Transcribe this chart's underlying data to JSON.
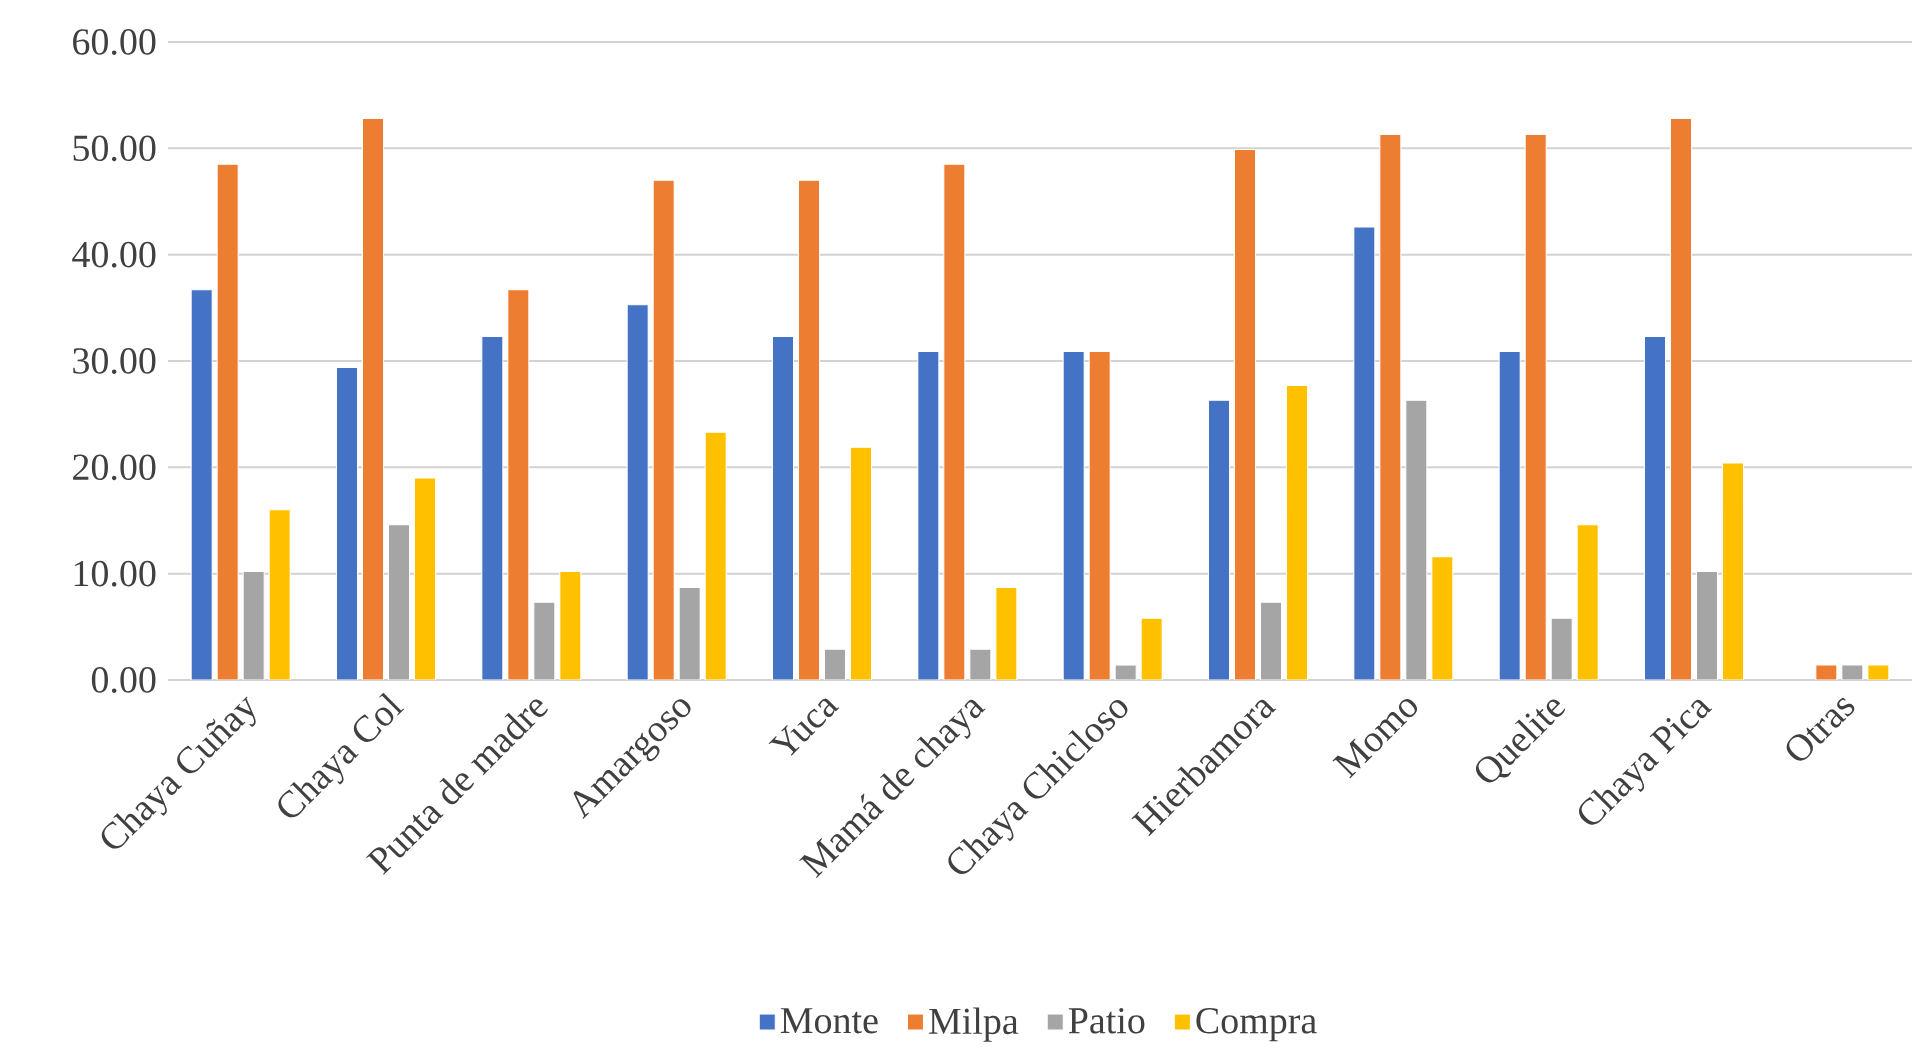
{
  "chart_data": {
    "type": "bar",
    "categories": [
      "Chaya Cuñay",
      "Chaya Col",
      "Punta de madre",
      "Amargoso",
      "Yuca",
      "Mamá de chaya",
      "Chaya Chicloso",
      "Hierbamora",
      "Momo",
      "Quelite",
      "Chaya Pica",
      "Otras"
    ],
    "series": [
      {
        "name": "Monte",
        "color": "#4472c4",
        "values": [
          36.7,
          29.4,
          32.3,
          35.3,
          32.3,
          30.9,
          30.9,
          26.3,
          42.6,
          30.9,
          32.3,
          null
        ]
      },
      {
        "name": "Milpa",
        "color": "#ed7d31",
        "values": [
          48.5,
          52.8,
          36.7,
          47.0,
          47.0,
          48.5,
          30.9,
          49.9,
          51.3,
          51.3,
          52.8,
          1.4
        ]
      },
      {
        "name": "Patio",
        "color": "#a5a5a5",
        "values": [
          10.2,
          14.6,
          7.3,
          8.7,
          2.9,
          2.9,
          1.4,
          7.3,
          26.3,
          5.8,
          10.2,
          1.4
        ]
      },
      {
        "name": "Compra",
        "color": "#ffc000",
        "values": [
          16.0,
          19.0,
          10.2,
          23.3,
          21.9,
          8.7,
          5.8,
          27.7,
          11.6,
          14.6,
          20.4,
          1.4
        ]
      }
    ],
    "ylim": [
      0,
      60
    ],
    "yticks": [
      {
        "value": 0,
        "label": "0.00"
      },
      {
        "value": 10,
        "label": "10.00"
      },
      {
        "value": 20,
        "label": "20.00"
      },
      {
        "value": 30,
        "label": "30.00"
      },
      {
        "value": 40,
        "label": "40.00"
      },
      {
        "value": 50,
        "label": "50.00"
      },
      {
        "value": 60,
        "label": "60.00"
      }
    ],
    "grid": "y",
    "legend": "bottom"
  }
}
